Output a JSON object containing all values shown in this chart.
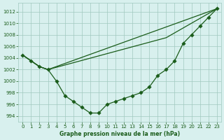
{
  "xlabel": "Graphe pression niveau de la mer (hPa)",
  "xlim": [
    -0.5,
    23.5
  ],
  "ylim": [
    993,
    1013.5
  ],
  "yticks": [
    994,
    996,
    998,
    1000,
    1002,
    1004,
    1006,
    1008,
    1010,
    1012
  ],
  "xticks": [
    0,
    1,
    2,
    3,
    4,
    5,
    6,
    7,
    8,
    9,
    10,
    11,
    12,
    13,
    14,
    15,
    16,
    17,
    18,
    19,
    20,
    21,
    22,
    23
  ],
  "bg_color": "#d8f0ee",
  "grid_color": "#a0c8c0",
  "line_color": "#1a5c1a",
  "line1_x": [
    0,
    1,
    2,
    3,
    4,
    5,
    6,
    7,
    8,
    9,
    10,
    11,
    12,
    13,
    14,
    15,
    16,
    17,
    18,
    19,
    20,
    21,
    22,
    23
  ],
  "line1_y": [
    1004.5,
    1003.5,
    1002.5,
    1002.0,
    1000.0,
    997.5,
    996.5,
    995.5,
    994.5,
    994.5,
    996.0,
    996.5,
    997.0,
    997.5,
    998.0,
    999.0,
    1001.0,
    1002.0,
    1003.5,
    1006.5,
    1008.0,
    1009.5,
    1011.0,
    1012.5
  ],
  "line2_x": [
    0,
    2,
    3,
    23
  ],
  "line2_y": [
    1004.5,
    1002.5,
    1002.0,
    1012.5
  ],
  "line3_x": [
    0,
    2,
    3,
    17,
    23
  ],
  "line3_y": [
    1004.5,
    1002.5,
    1002.0,
    1007.5,
    1012.5
  ]
}
